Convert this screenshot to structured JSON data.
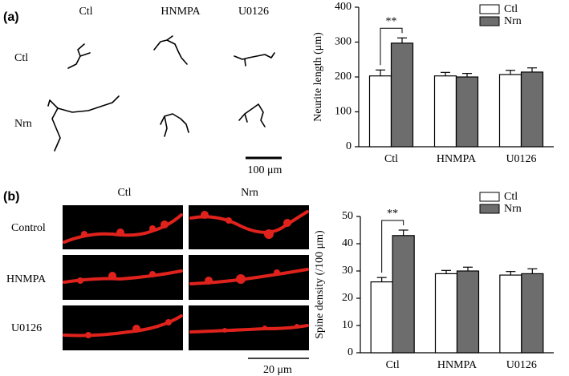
{
  "panel_labels": [
    "(a)",
    "(b)"
  ],
  "panel_a": {
    "columns": [
      "Ctl",
      "HNMPA",
      "U0126"
    ],
    "rows": [
      "Ctl",
      "Nrn"
    ],
    "scale_bar": "100 μm"
  },
  "panel_b": {
    "columns": [
      "Ctl",
      "Nrn"
    ],
    "rows": [
      "Control",
      "HNMPA",
      "U0126"
    ],
    "scale_bar": "20 μm"
  },
  "chart_data": [
    {
      "type": "bar",
      "ylabel": "Neurite length (μm)",
      "categories": [
        "Ctl",
        "HNMPA",
        "U0126"
      ],
      "series": [
        {
          "name": "Ctl",
          "color": "#ffffff",
          "values": [
            203,
            203,
            207
          ],
          "errors": [
            17,
            10,
            12
          ]
        },
        {
          "name": "Nrn",
          "color": "#6d6d6d",
          "values": [
            297,
            200,
            214
          ],
          "errors": [
            15,
            10,
            12
          ]
        }
      ],
      "ylim": [
        0,
        400
      ],
      "yticks": [
        0,
        100,
        200,
        300,
        400
      ],
      "annotation": "**",
      "legend": "upper right"
    },
    {
      "type": "bar",
      "ylabel": "Spine density (/100 μm)",
      "categories": [
        "Ctl",
        "HNMPA",
        "U0126"
      ],
      "series": [
        {
          "name": "Ctl",
          "color": "#ffffff",
          "values": [
            26,
            29,
            28.5
          ],
          "errors": [
            1.6,
            1.2,
            1.3
          ]
        },
        {
          "name": "Nrn",
          "color": "#6d6d6d",
          "values": [
            43,
            30,
            29
          ],
          "errors": [
            2,
            1.4,
            1.8
          ]
        }
      ],
      "ylim": [
        0,
        50
      ],
      "yticks": [
        0,
        10,
        20,
        30,
        40,
        50
      ],
      "annotation": "**",
      "legend": "upper right"
    }
  ]
}
